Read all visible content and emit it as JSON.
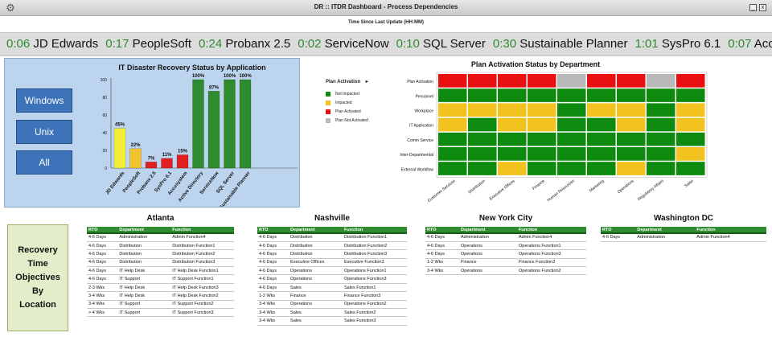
{
  "window": {
    "title": "DR :: ITDR Dashboard - Process Dependencies",
    "gear_icon": "gear-icon",
    "minimize_label": "_",
    "close_label": "x"
  },
  "subtitle": "Time Since Last Update (HH:MM)",
  "ticker": {
    "items": [
      {
        "time": "0:06",
        "name": "JD Edwards"
      },
      {
        "time": "0:17",
        "name": "PeopleSoft"
      },
      {
        "time": "0:24",
        "name": "Probanx 2.5"
      },
      {
        "time": "0:02",
        "name": "ServiceNow"
      },
      {
        "time": "0:10",
        "name": "SQL Server"
      },
      {
        "time": "0:30",
        "name": "Sustainable Planner"
      },
      {
        "time": "1:01",
        "name": "SysPro 6.1"
      },
      {
        "time": "0:07",
        "name": "Accu"
      }
    ],
    "time_color": "#2e8b2e"
  },
  "os_buttons": [
    "Windows",
    "Unix",
    "All"
  ],
  "chart_data": [
    {
      "type": "bar",
      "title": "IT Disaster Recovery Status by Application",
      "categories": [
        "JD Edwards",
        "PeopleSoft",
        "Probanx 2.5",
        "SysPro 6.1",
        "Accusystem",
        "Active Directory",
        "ServiceNow",
        "SQL Server",
        "Sustainable Planner"
      ],
      "values": [
        45,
        22,
        7,
        11,
        15,
        100,
        87,
        100,
        100
      ],
      "data_labels": [
        "45%",
        "22%",
        "7%",
        "11%",
        "15%",
        "100%",
        "87%",
        "100%",
        "100%"
      ],
      "bar_colors": [
        "#f2ee3a",
        "#f2c32e",
        "#e02020",
        "#e02020",
        "#e02020",
        "#2e8b2e",
        "#2e8b2e",
        "#2e8b2e",
        "#2e8b2e"
      ],
      "ylim": [
        0,
        100
      ],
      "yticks": [
        "0",
        "20",
        "40",
        "60",
        "80",
        "100"
      ],
      "grid": false
    },
    {
      "type": "heatmap",
      "title": "Plan Activation Status by Department",
      "rows": [
        "Plan Activation",
        "Personnel",
        "Workplace",
        "IT Application",
        "Comm Service",
        "Inter-Departmental",
        "External Workflow"
      ],
      "columns": [
        "Customer Services",
        "Distribution",
        "Executive Offices",
        "Finance",
        "Human Resources",
        "Marketing",
        "Operations",
        "Regulatory Affairs",
        "Sales"
      ],
      "status_colors": {
        "Not Impacted": "#0e8a0e",
        "Impacted": "#f2c31f",
        "Plan Activated": "#e81010",
        "Plan Not Activated": "#b8b8b8"
      },
      "cells": [
        [
          "Plan Activated",
          "Plan Activated",
          "Plan Activated",
          "Plan Activated",
          "Plan Not Activated",
          "Plan Activated",
          "Plan Activated",
          "Plan Not Activated",
          "Plan Activated"
        ],
        [
          "Not Impacted",
          "Not Impacted",
          "Not Impacted",
          "Not Impacted",
          "Not Impacted",
          "Not Impacted",
          "Not Impacted",
          "Not Impacted",
          "Not Impacted"
        ],
        [
          "Impacted",
          "Impacted",
          "Impacted",
          "Impacted",
          "Not Impacted",
          "Impacted",
          "Impacted",
          "Not Impacted",
          "Impacted"
        ],
        [
          "Impacted",
          "Not Impacted",
          "Impacted",
          "Impacted",
          "Not Impacted",
          "Not Impacted",
          "Impacted",
          "Not Impacted",
          "Impacted"
        ],
        [
          "Not Impacted",
          "Not Impacted",
          "Not Impacted",
          "Not Impacted",
          "Not Impacted",
          "Not Impacted",
          "Not Impacted",
          "Not Impacted",
          "Not Impacted"
        ],
        [
          "Not Impacted",
          "Not Impacted",
          "Not Impacted",
          "Not Impacted",
          "Not Impacted",
          "Not Impacted",
          "Not Impacted",
          "Not Impacted",
          "Impacted"
        ],
        [
          "Not Impacted",
          "Not Impacted",
          "Impacted",
          "Not Impacted",
          "Not Impacted",
          "Not Impacted",
          "Impacted",
          "Not Impacted",
          "Not Impacted"
        ]
      ],
      "legend_title": "Plan Activation",
      "legend_arrow": "▸",
      "legend": [
        "Not Impacted",
        "Impacted",
        "Plan Activated",
        "Plan Not Activated"
      ]
    }
  ],
  "rto_label": [
    "Recovery",
    "Time",
    "Objectives",
    "By",
    "Location"
  ],
  "table_headers": [
    "RTO",
    "Department",
    "Function"
  ],
  "locations": [
    {
      "name": "Atlanta",
      "rows": [
        [
          "4-6 Days",
          "Administration",
          "Admin Function4"
        ],
        [
          "4-6 Days",
          "Distribution",
          "Distribution Function1"
        ],
        [
          "4-6 Days",
          "Distribution",
          "Distribution Function2"
        ],
        [
          "4-6 Days",
          "Distribution",
          "Distribution Function3"
        ],
        [
          "4-6 Days",
          "IT Help Desk",
          "IT Help Desk Function1"
        ],
        [
          "4-6 Days",
          "IT Support",
          "IT Support Function1"
        ],
        [
          "2-3 Wks",
          "IT Help Desk",
          "IT Help Desk Function3"
        ],
        [
          "3-4 Wks",
          "IT Help Desk",
          "IT Help Desk Function2"
        ],
        [
          "3-4 Wks",
          "IT Support",
          "IT Support Function2"
        ],
        [
          "> 4 Wks",
          "IT Support",
          "IT Support Function3"
        ]
      ]
    },
    {
      "name": "Nashville",
      "rows": [
        [
          "4-6 Days",
          "Distribution",
          "Distribution Function1"
        ],
        [
          "4-6 Days",
          "Distribution",
          "Distribution Function2"
        ],
        [
          "4-6 Days",
          "Distribution",
          "Distribution Function3"
        ],
        [
          "4-6 Days",
          "Executive Offices",
          "Executive Function3"
        ],
        [
          "4-6 Days",
          "Operations",
          "Operations Function1"
        ],
        [
          "4-6 Days",
          "Operations",
          "Operations Function3"
        ],
        [
          "4-6 Days",
          "Sales",
          "Sales Function1"
        ],
        [
          "1-2 Wks",
          "Finance",
          "Finance Function3"
        ],
        [
          "3-4 Wks",
          "Operations",
          "Operations Function2"
        ],
        [
          "3-4 Wks",
          "Sales",
          "Sales Function2"
        ],
        [
          "3-4 Wks",
          "Sales",
          "Sales Function3"
        ]
      ]
    },
    {
      "name": "New York City",
      "rows": [
        [
          "4-6 Days",
          "Administration",
          "Admin Function4"
        ],
        [
          "4-6 Days",
          "Operations",
          "Operations Function1"
        ],
        [
          "4-6 Days",
          "Operations",
          "Operations Function3"
        ],
        [
          "1-2 Wks",
          "Finance",
          "Finance Function3"
        ],
        [
          "3-4 Wks",
          "Operations",
          "Operations Function2"
        ]
      ]
    },
    {
      "name": "Washington DC",
      "rows": [
        [
          "4-6 Days",
          "Administration",
          "Admin Function4"
        ]
      ]
    }
  ]
}
